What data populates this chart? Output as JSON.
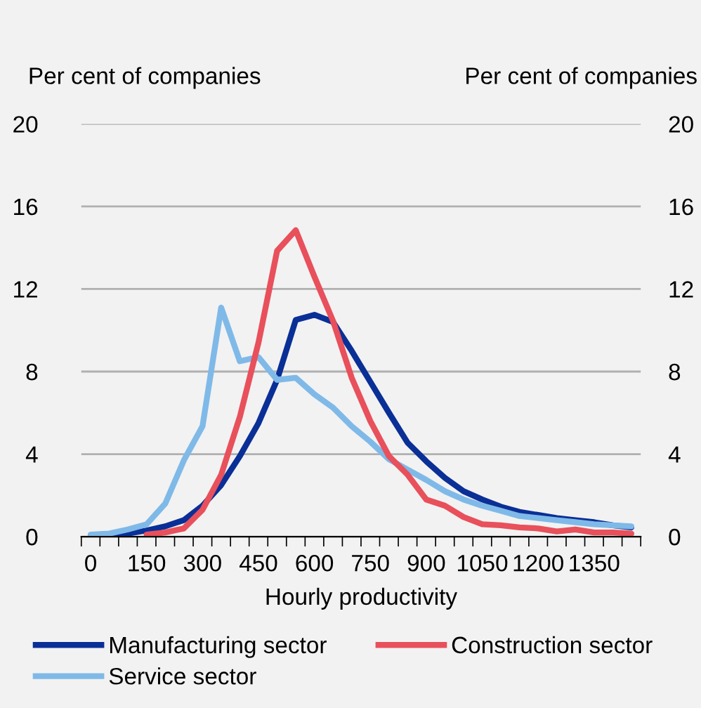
{
  "chart_data": {
    "type": "line",
    "xlabel": "Hourly productivity",
    "ylabel": "Per cent of companies",
    "y2label": "Per cent of companies",
    "categories": [
      "0",
      null,
      null,
      "150",
      null,
      null,
      "300",
      null,
      null,
      "450",
      null,
      null,
      "600",
      null,
      null,
      "750",
      null,
      null,
      "900",
      null,
      null,
      "1050",
      null,
      null,
      "1200",
      null,
      null,
      "1350",
      null,
      null
    ],
    "series": [
      {
        "name": "Manufacturing sector",
        "color": "#0a2f96",
        "values": [
          0,
          0,
          0.15,
          0.3,
          0.5,
          0.8,
          1.5,
          2.5,
          3.9,
          5.5,
          7.6,
          10.5,
          10.75,
          10.4,
          9.0,
          7.5,
          6.0,
          4.55,
          3.65,
          2.85,
          2.2,
          1.8,
          1.45,
          1.2,
          1.05,
          0.9,
          0.8,
          0.7,
          0.55,
          0.45
        ]
      },
      {
        "name": "Service sector",
        "color": "#7fb9e8",
        "values": [
          0.1,
          0.15,
          0.35,
          0.6,
          1.6,
          3.7,
          5.35,
          11.1,
          8.5,
          8.7,
          7.6,
          7.7,
          6.9,
          6.25,
          5.35,
          4.6,
          3.75,
          3.25,
          2.75,
          2.2,
          1.8,
          1.5,
          1.25,
          1.0,
          0.9,
          0.8,
          0.7,
          0.6,
          0.55,
          0.5
        ]
      },
      {
        "name": "Construction sector",
        "color": "#e8505b",
        "values": [
          null,
          null,
          null,
          0.1,
          0.2,
          0.4,
          1.3,
          3.0,
          5.8,
          9.4,
          13.85,
          14.85,
          12.6,
          10.45,
          7.7,
          5.6,
          3.9,
          3.0,
          1.8,
          1.5,
          0.95,
          0.6,
          0.55,
          0.45,
          0.4,
          0.25,
          0.35,
          0.2,
          0.2,
          0.15
        ]
      }
    ],
    "ylim": [
      0,
      20
    ],
    "yticks": [
      0,
      4,
      8,
      12,
      16,
      20
    ],
    "y2lim": [
      0,
      20
    ],
    "y2ticks": [
      0,
      4,
      8,
      12,
      16,
      20
    ],
    "grid": "y",
    "legend": "bottom"
  }
}
